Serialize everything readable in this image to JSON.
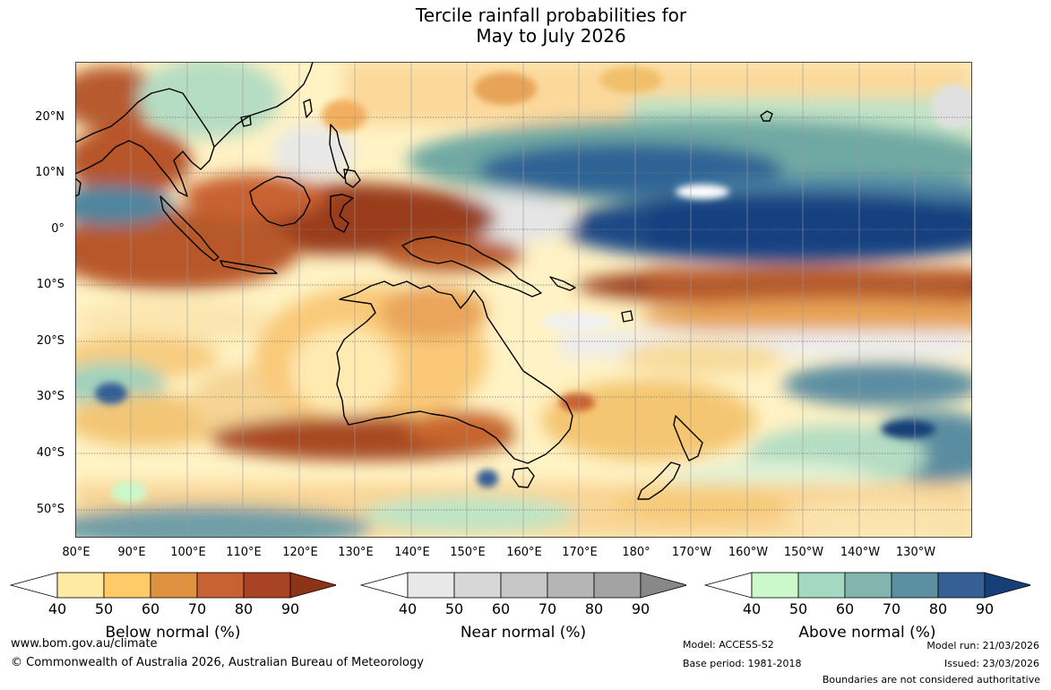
{
  "title": {
    "line1": "Tercile rainfall probabilities for",
    "line2": "May to July 2026"
  },
  "map": {
    "lat_labels": [
      "20°N",
      "10°N",
      "0°",
      "10°S",
      "20°S",
      "30°S",
      "40°S",
      "50°S"
    ],
    "lon_labels": [
      "80°E",
      "90°E",
      "100°E",
      "110°E",
      "120°E",
      "130°E",
      "140°E",
      "150°E",
      "160°E",
      "170°E",
      "180°",
      "170°W",
      "160°W",
      "150°W",
      "140°W",
      "130°W"
    ]
  },
  "legends": {
    "below": {
      "title": "Below normal (%)",
      "ticks": [
        "40",
        "50",
        "60",
        "70",
        "80",
        "90"
      ],
      "colors": [
        "#ffffff",
        "#ffeaa3",
        "#fecb68",
        "#de9141",
        "#c96232",
        "#a84423",
        "#8c3318"
      ]
    },
    "near": {
      "title": "Near normal (%)",
      "ticks": [
        "40",
        "50",
        "60",
        "70",
        "80",
        "90"
      ],
      "colors": [
        "#ffffff",
        "#e8e8e8",
        "#d7d7d7",
        "#c6c6c6",
        "#b5b5b5",
        "#a3a3a3",
        "#888888"
      ]
    },
    "above": {
      "title": "Above normal (%)",
      "ticks": [
        "40",
        "50",
        "60",
        "70",
        "80",
        "90"
      ],
      "colors": [
        "#ffffff",
        "#ccf9cb",
        "#a4d8c1",
        "#82b5ab",
        "#5c8ea1",
        "#365f96",
        "#173f77"
      ]
    }
  },
  "footer": {
    "url": "www.bom.gov.au/climate",
    "copyright": "© Commonwealth of Australia 2026, Australian Bureau of Meteorology",
    "model": "Model: ACCESS-S2",
    "base_period": "Base period: 1981-2018",
    "model_run": "Model run: 21/03/2026",
    "issued": "Issued: 23/03/2026",
    "disclaimer": "Boundaries are not considered authoritative"
  }
}
